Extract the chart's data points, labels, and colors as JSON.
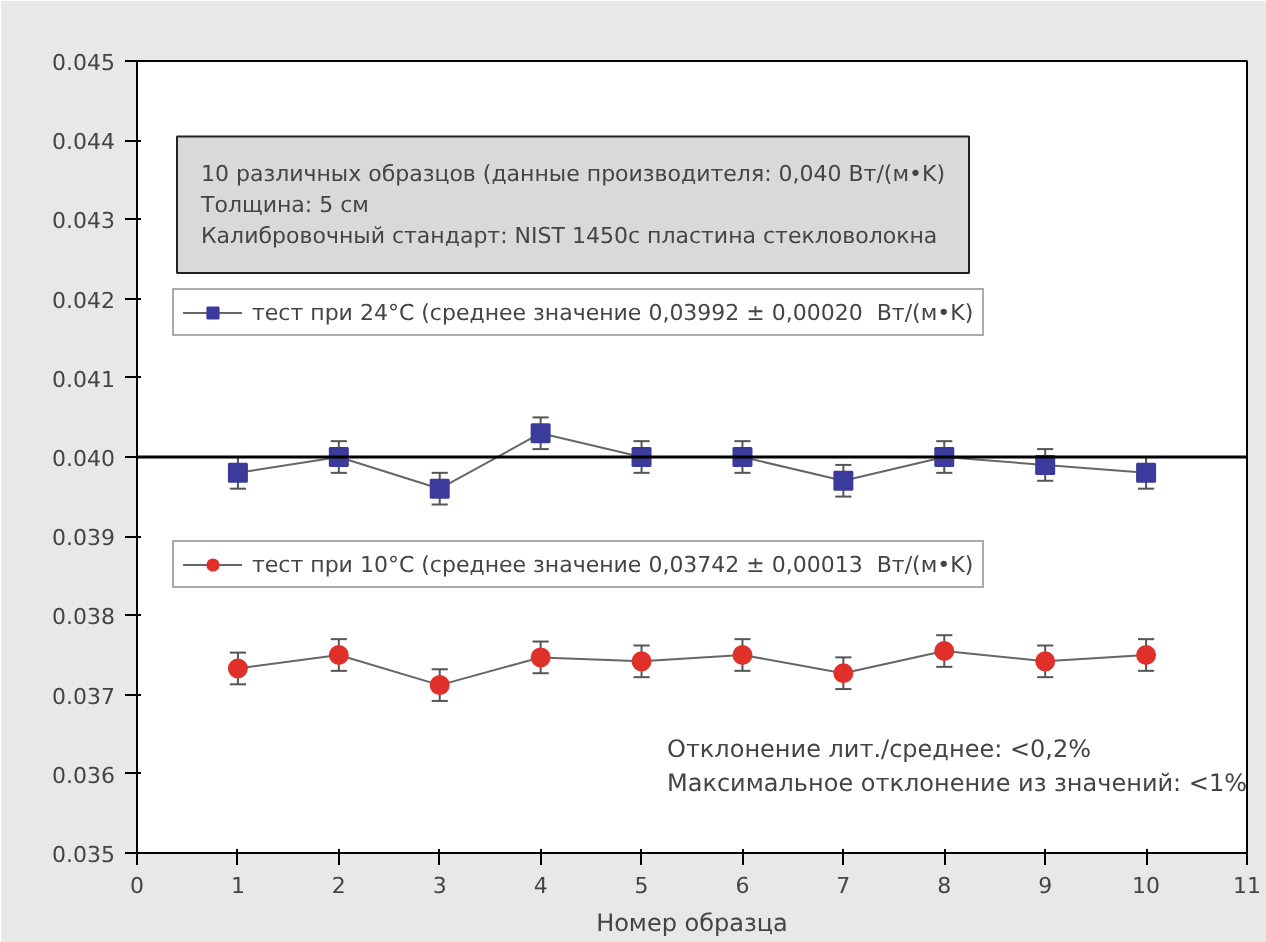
{
  "chart_data": {
    "type": "line",
    "xlabel": "Номер образца",
    "x": [
      1,
      2,
      3,
      4,
      5,
      6,
      7,
      8,
      9,
      10
    ],
    "series": [
      {
        "name": "тест при 24°C (среднее значение 0,03992 ± 0,00020  Вт/(м•K)",
        "color": "#3b3b9c",
        "marker": "square",
        "values": [
          0.0398,
          0.04,
          0.0396,
          0.0403,
          0.04,
          0.04,
          0.0397,
          0.04,
          0.0399,
          0.0398
        ],
        "errors": [
          0.0002,
          0.0002,
          0.0002,
          0.0002,
          0.0002,
          0.0002,
          0.0002,
          0.0002,
          0.0002,
          0.0002
        ]
      },
      {
        "name": "тест при 10°C (среднее значение 0,03742 ± 0,00013  Вт/(м•K)",
        "color": "#e0302a",
        "marker": "circle",
        "values": [
          0.03733,
          0.0375,
          0.03712,
          0.03747,
          0.03742,
          0.0375,
          0.03727,
          0.03755,
          0.03742,
          0.0375
        ],
        "errors": [
          0.0002,
          0.0002,
          0.0002,
          0.0002,
          0.0002,
          0.0002,
          0.0002,
          0.0002,
          0.0002,
          0.0002
        ]
      }
    ],
    "xlim": [
      0,
      11
    ],
    "xticks": [
      0,
      1,
      2,
      3,
      4,
      5,
      6,
      7,
      8,
      9,
      10,
      11
    ],
    "ylim": [
      0.035,
      0.045
    ],
    "yticks": [
      {
        "value": 0.035,
        "label": "0.035"
      },
      {
        "value": 0.036,
        "label": "0.036"
      },
      {
        "value": 0.037,
        "label": "0.037"
      },
      {
        "value": 0.038,
        "label": "0.038"
      },
      {
        "value": 0.039,
        "label": "0.039"
      },
      {
        "value": 0.04,
        "label": "0.040"
      },
      {
        "value": 0.041,
        "label": "0.041"
      },
      {
        "value": 0.042,
        "label": "0.042"
      },
      {
        "value": 0.043,
        "label": "0.043"
      },
      {
        "value": 0.044,
        "label": "0.044"
      },
      {
        "value": 0.045,
        "label": "0.045"
      }
    ],
    "ref_lines": [
      {
        "axis": "y",
        "value": 0.04,
        "color": "#000000"
      }
    ],
    "annotations": [
      "10 различных образцов (данные производителя: 0,040 Вт/(м•K)\nТолщина: 5 см\n Калибровочный стандарт: NIST 1450c пластина стекловолокна",
      "Отклонение лит./среднее: <0,2%\nМаксимальное отклонение из значений: <1%"
    ],
    "grid": false,
    "legend": "top left"
  }
}
